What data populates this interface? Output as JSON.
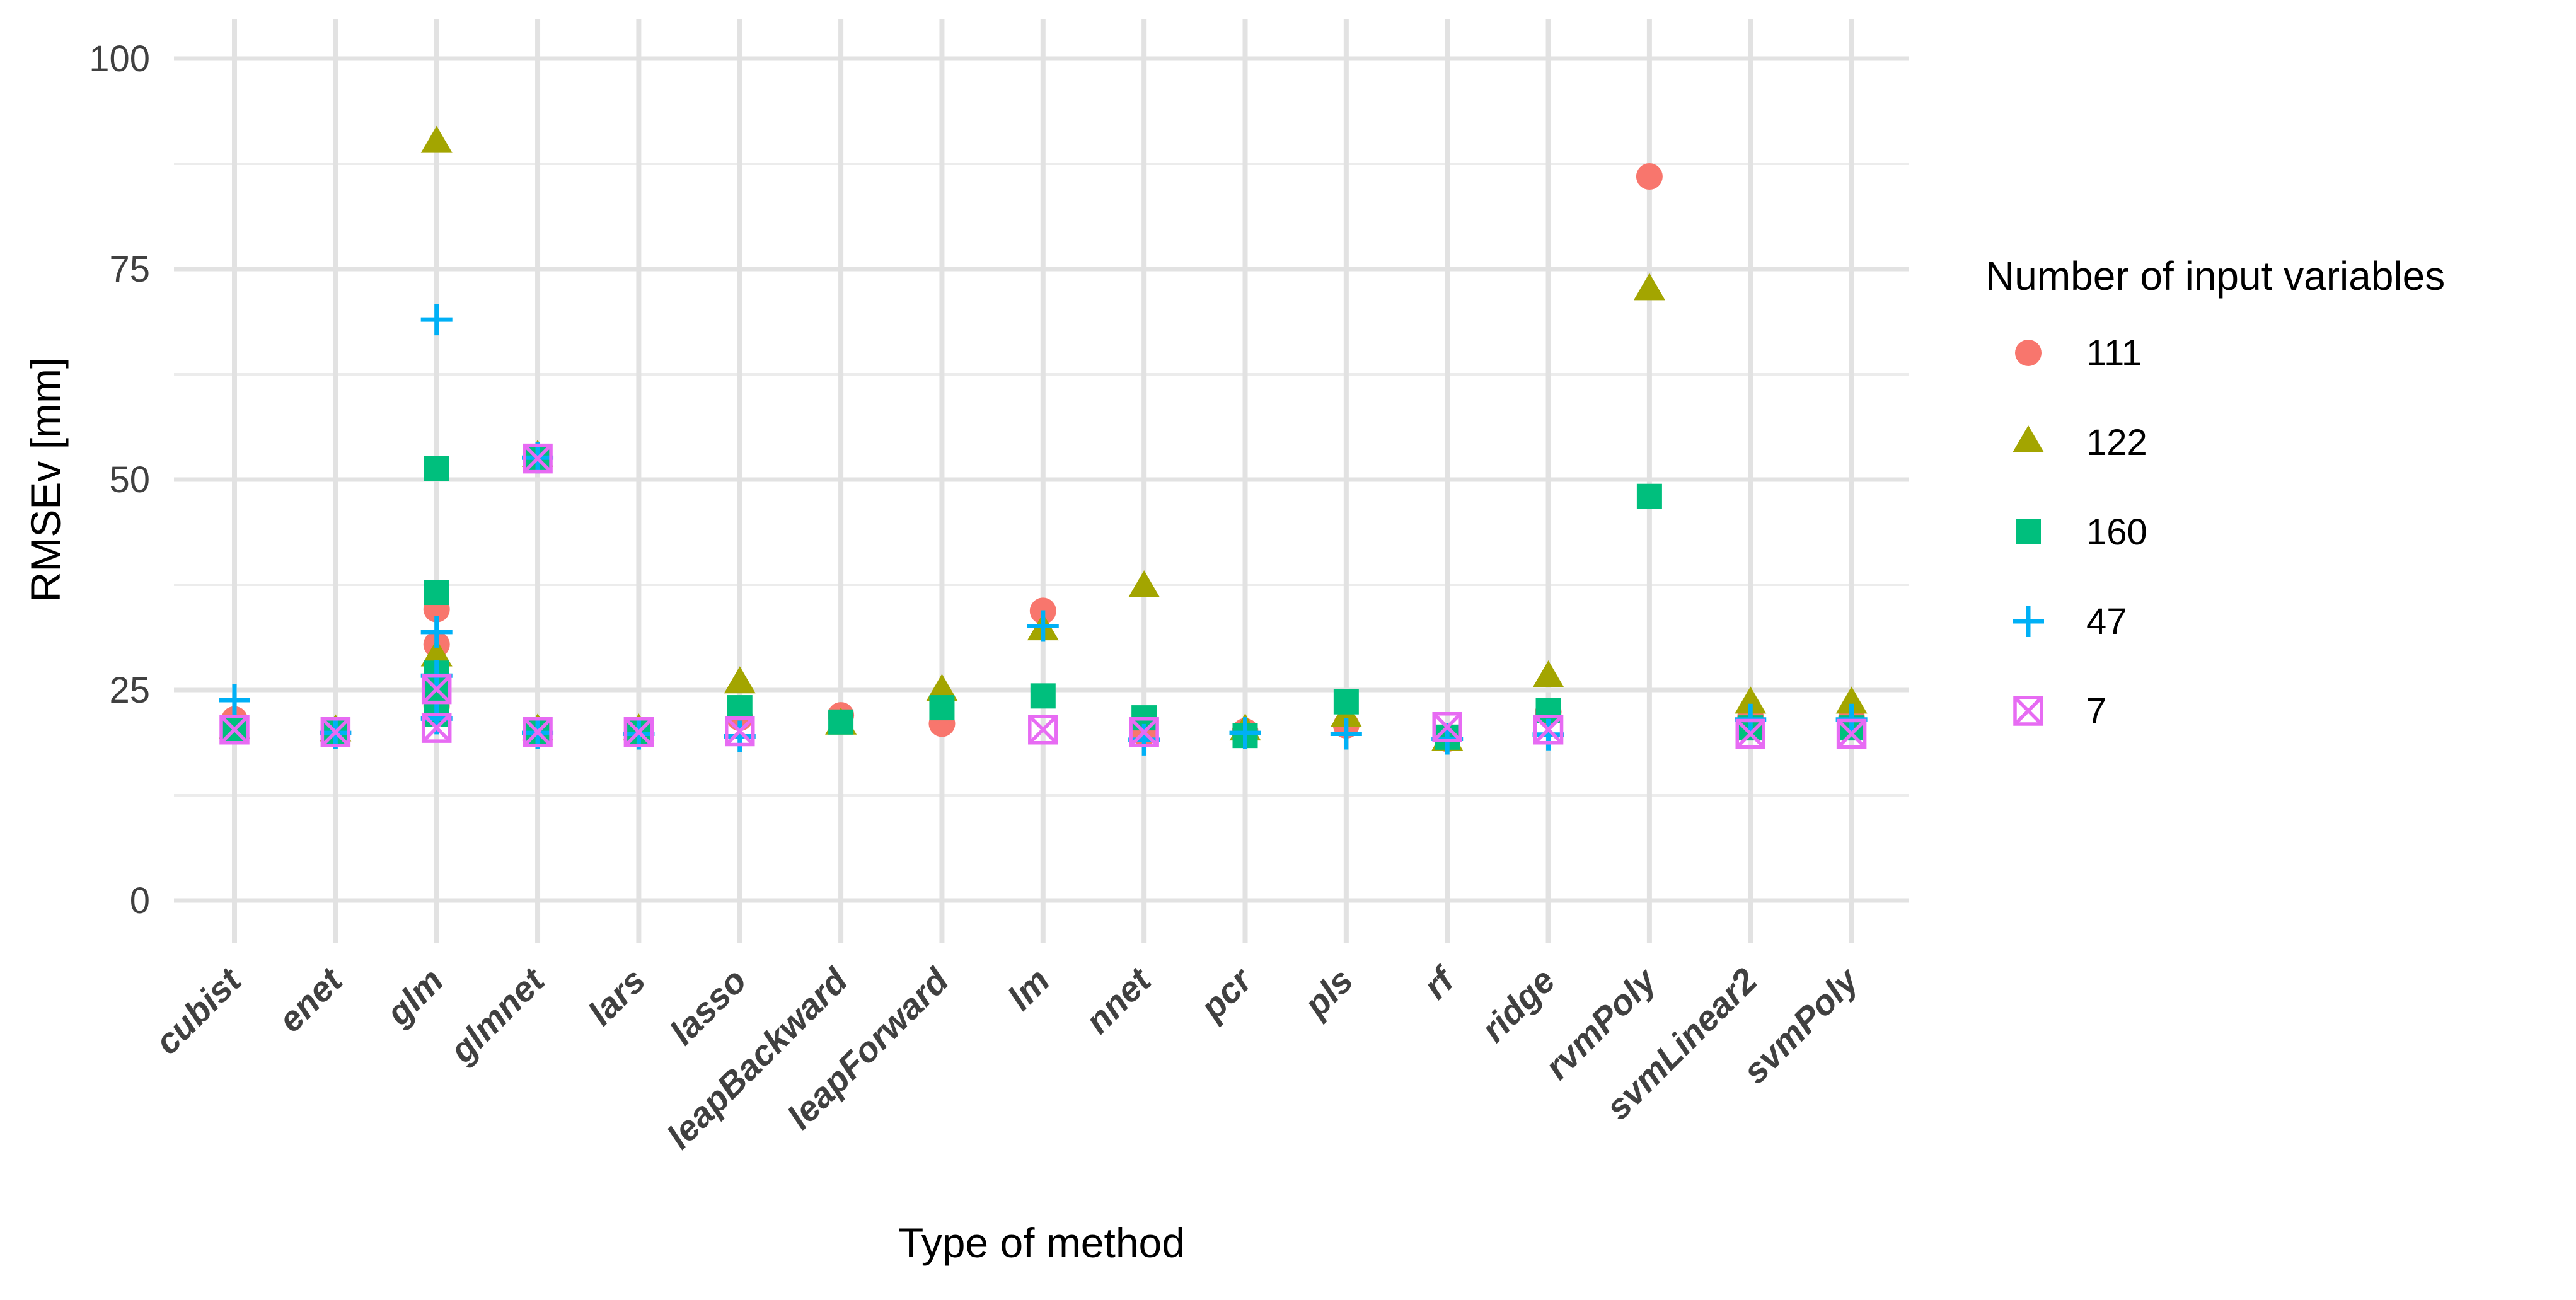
{
  "chart_data": {
    "type": "scatter",
    "xlabel": "Type of method",
    "ylabel": "RMSEv [mm]",
    "ylim": [
      0,
      100
    ],
    "y_ticks": [
      0,
      25,
      50,
      75,
      100
    ],
    "y_minor_ticks": [
      12.5,
      37.5,
      62.5,
      87.5
    ],
    "grid": "on",
    "legend_position": "right",
    "categories": [
      "cubist",
      "enet",
      "glm",
      "glmnet",
      "lars",
      "lasso",
      "leapBackward",
      "leapForward",
      "lm",
      "nnet",
      "pcr",
      "pls",
      "rf",
      "ridge",
      "rvmPoly",
      "svmLinear2",
      "svmPoly"
    ],
    "legend": {
      "title": "Number of input variables",
      "entries": [
        {
          "label": "111",
          "shape": "circle",
          "color": "#F8766D"
        },
        {
          "label": "122",
          "shape": "triangle",
          "color": "#A3A500"
        },
        {
          "label": "160",
          "shape": "square",
          "color": "#00BF7D"
        },
        {
          "label": "47",
          "shape": "plus",
          "color": "#00B0F6"
        },
        {
          "label": "7",
          "shape": "square-x",
          "color": "#E76BF3"
        }
      ]
    },
    "series": [
      {
        "name": "111",
        "shape": "circle",
        "color": "#F8766D",
        "points": [
          {
            "m": "cubist",
            "v": 21.5
          },
          {
            "m": "enet",
            "v": 20.1
          },
          {
            "m": "glm",
            "v": 34.6
          },
          {
            "m": "glm",
            "v": 30.4
          },
          {
            "m": "glm",
            "v": 23.1
          },
          {
            "m": "glmnet",
            "v": 52.6
          },
          {
            "m": "glmnet",
            "v": 20.1
          },
          {
            "m": "lars",
            "v": 20.1
          },
          {
            "m": "lasso",
            "v": 21.7
          },
          {
            "m": "leapBackward",
            "v": 22.0
          },
          {
            "m": "leapForward",
            "v": 21.0
          },
          {
            "m": "lm",
            "v": 34.4
          },
          {
            "m": "nnet",
            "v": 19.9
          },
          {
            "m": "pcr",
            "v": 20.1
          },
          {
            "m": "pls",
            "v": 20.8
          },
          {
            "m": "rf",
            "v": 19.2
          },
          {
            "m": "ridge",
            "v": 22.4
          },
          {
            "m": "rvmPoly",
            "v": 86.0
          },
          {
            "m": "svmLinear2",
            "v": 21.8
          },
          {
            "m": "svmPoly",
            "v": 21.8
          }
        ]
      },
      {
        "name": "122",
        "shape": "triangle",
        "color": "#A3A500",
        "points": [
          {
            "m": "cubist",
            "v": 20.4
          },
          {
            "m": "enet",
            "v": 20.1
          },
          {
            "m": "glm",
            "v": 90.0
          },
          {
            "m": "glm",
            "v": 29.0
          },
          {
            "m": "glm",
            "v": 22.8
          },
          {
            "m": "glmnet",
            "v": 52.7
          },
          {
            "m": "glmnet",
            "v": 20.2
          },
          {
            "m": "lars",
            "v": 20.2
          },
          {
            "m": "lasso",
            "v": 25.8
          },
          {
            "m": "leapBackward",
            "v": 20.9
          },
          {
            "m": "leapForward",
            "v": 24.9
          },
          {
            "m": "lm",
            "v": 32.1
          },
          {
            "m": "nnet",
            "v": 37.2
          },
          {
            "m": "pcr",
            "v": 20.2
          },
          {
            "m": "pls",
            "v": 21.8
          },
          {
            "m": "rf",
            "v": 19.0
          },
          {
            "m": "ridge",
            "v": 26.5
          },
          {
            "m": "rvmPoly",
            "v": 72.5
          },
          {
            "m": "svmLinear2",
            "v": 23.4
          },
          {
            "m": "svmPoly",
            "v": 23.4
          }
        ]
      },
      {
        "name": "160",
        "shape": "square",
        "color": "#00BF7D",
        "points": [
          {
            "m": "cubist",
            "v": 20.3
          },
          {
            "m": "enet",
            "v": 20.0
          },
          {
            "m": "glm",
            "v": 51.3
          },
          {
            "m": "glm",
            "v": 36.6
          },
          {
            "m": "glm",
            "v": 27.0
          },
          {
            "m": "glm",
            "v": 24.1
          },
          {
            "m": "glm",
            "v": 22.1
          },
          {
            "m": "glmnet",
            "v": 52.5
          },
          {
            "m": "glmnet",
            "v": 20.0
          },
          {
            "m": "lars",
            "v": 19.9
          },
          {
            "m": "lasso",
            "v": 22.9
          },
          {
            "m": "leapBackward",
            "v": 21.2
          },
          {
            "m": "leapForward",
            "v": 22.9
          },
          {
            "m": "lm",
            "v": 24.3
          },
          {
            "m": "nnet",
            "v": 21.7
          },
          {
            "m": "pcr",
            "v": 19.6
          },
          {
            "m": "pls",
            "v": 23.6
          },
          {
            "m": "rf",
            "v": 19.4
          },
          {
            "m": "ridge",
            "v": 22.6
          },
          {
            "m": "rvmPoly",
            "v": 48.0
          },
          {
            "m": "svmLinear2",
            "v": 20.5
          },
          {
            "m": "svmPoly",
            "v": 20.5
          }
        ]
      },
      {
        "name": "47",
        "shape": "plus",
        "color": "#00B0F6",
        "points": [
          {
            "m": "cubist",
            "v": 23.8
          },
          {
            "m": "enet",
            "v": 19.9
          },
          {
            "m": "glm",
            "v": 69.0
          },
          {
            "m": "glm",
            "v": 31.9
          },
          {
            "m": "glm",
            "v": 26.7
          },
          {
            "m": "glm",
            "v": 21.6
          },
          {
            "m": "glmnet",
            "v": 52.6
          },
          {
            "m": "glmnet",
            "v": 19.9
          },
          {
            "m": "lars",
            "v": 19.8
          },
          {
            "m": "lasso",
            "v": 19.5
          },
          {
            "m": "lm",
            "v": 32.6
          },
          {
            "m": "nnet",
            "v": 19.1
          },
          {
            "m": "pcr",
            "v": 19.9
          },
          {
            "m": "pls",
            "v": 19.8
          },
          {
            "m": "rf",
            "v": 19.2
          },
          {
            "m": "ridge",
            "v": 19.7
          },
          {
            "m": "svmLinear2",
            "v": 21.5
          },
          {
            "m": "svmPoly",
            "v": 21.5
          }
        ]
      },
      {
        "name": "7",
        "shape": "square-x",
        "color": "#E76BF3",
        "points": [
          {
            "m": "cubist",
            "v": 20.3
          },
          {
            "m": "enet",
            "v": 20.0
          },
          {
            "m": "glm",
            "v": 25.1
          },
          {
            "m": "glm",
            "v": 20.5
          },
          {
            "m": "glmnet",
            "v": 52.5
          },
          {
            "m": "glmnet",
            "v": 20.0
          },
          {
            "m": "lars",
            "v": 20.0
          },
          {
            "m": "lasso",
            "v": 20.1
          },
          {
            "m": "lm",
            "v": 20.3
          },
          {
            "m": "nnet",
            "v": 20.0
          },
          {
            "m": "rf",
            "v": 20.6
          },
          {
            "m": "ridge",
            "v": 20.3
          },
          {
            "m": "svmLinear2",
            "v": 19.8
          },
          {
            "m": "svmPoly",
            "v": 19.8
          }
        ]
      }
    ],
    "colors": {
      "grid_major": "#E2E2E2",
      "grid_minor": "#ECECEC",
      "tick_label": "#404040",
      "axis_title": "#000000",
      "legend_text": "#000000",
      "background": "#FFFFFF"
    }
  }
}
